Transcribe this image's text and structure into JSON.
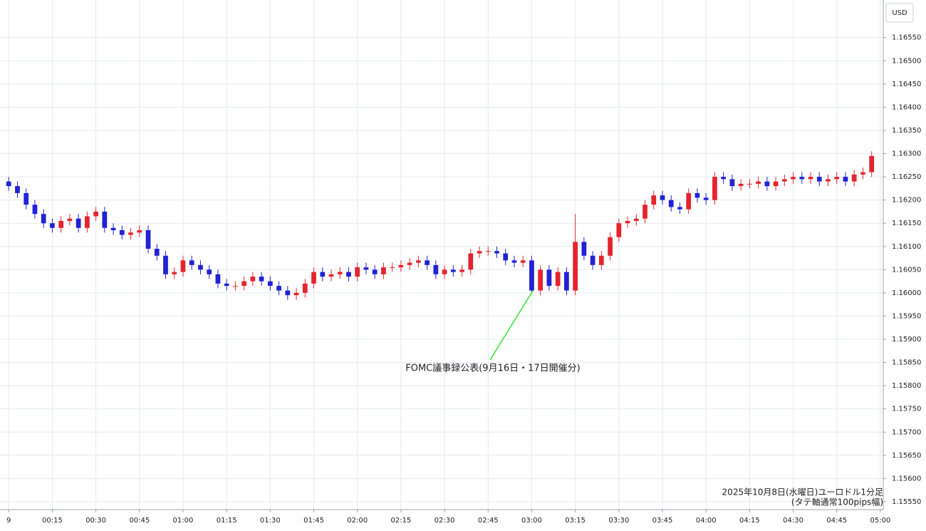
{
  "chart_data": {
    "type": "candlestick",
    "currency": "USD",
    "annotation": "FOMC議事録公表(9月16日・17日開催分)",
    "caption": [
      "2025年10月8日(水曜日)ユーロドル1分足",
      "(タテ軸通常100pips幅)"
    ],
    "up_color": "#e4242e",
    "down_color": "#2121d6",
    "grid": true,
    "xlim": [
      -3,
      301
    ],
    "ylim": [
      1.15533,
      1.16631
    ],
    "xticks": [
      {
        "value": 0,
        "label": "9"
      },
      {
        "value": 15,
        "label": "00:15"
      },
      {
        "value": 30,
        "label": "00:30"
      },
      {
        "value": 45,
        "label": "00:45"
      },
      {
        "value": 60,
        "label": "01:00"
      },
      {
        "value": 75,
        "label": "01:15"
      },
      {
        "value": 90,
        "label": "01:30"
      },
      {
        "value": 105,
        "label": "01:45"
      },
      {
        "value": 120,
        "label": "02:00"
      },
      {
        "value": 135,
        "label": "02:15"
      },
      {
        "value": 150,
        "label": "02:30"
      },
      {
        "value": 165,
        "label": "02:45"
      },
      {
        "value": 180,
        "label": "03:00"
      },
      {
        "value": 195,
        "label": "03:15"
      },
      {
        "value": 210,
        "label": "03:30"
      },
      {
        "value": 225,
        "label": "03:45"
      },
      {
        "value": 240,
        "label": "04:00"
      },
      {
        "value": 255,
        "label": "04:15"
      },
      {
        "value": 270,
        "label": "04:30"
      },
      {
        "value": 285,
        "label": "04:45"
      },
      {
        "value": 300,
        "label": "05:00"
      }
    ],
    "yticks": [
      {
        "value": 1.1555,
        "label": "1.15550"
      },
      {
        "value": 1.156,
        "label": "1.15600"
      },
      {
        "value": 1.1565,
        "label": "1.15650"
      },
      {
        "value": 1.157,
        "label": "1.15700"
      },
      {
        "value": 1.1575,
        "label": "1.15750"
      },
      {
        "value": 1.158,
        "label": "1.15800"
      },
      {
        "value": 1.1585,
        "label": "1.15850"
      },
      {
        "value": 1.159,
        "label": "1.15900"
      },
      {
        "value": 1.1595,
        "label": "1.15950"
      },
      {
        "value": 1.16,
        "label": "1.16000"
      },
      {
        "value": 1.1605,
        "label": "1.16050"
      },
      {
        "value": 1.161,
        "label": "1.16100"
      },
      {
        "value": 1.1615,
        "label": "1.16150"
      },
      {
        "value": 1.162,
        "label": "1.16200"
      },
      {
        "value": 1.1625,
        "label": "1.16250"
      },
      {
        "value": 1.163,
        "label": "1.16300"
      },
      {
        "value": 1.1635,
        "label": "1.16350"
      },
      {
        "value": 1.164,
        "label": "1.16400"
      },
      {
        "value": 1.1645,
        "label": "1.16450"
      },
      {
        "value": 1.165,
        "label": "1.16500"
      },
      {
        "value": 1.1655,
        "label": "1.16550"
      }
    ],
    "x": [
      0,
      3,
      6,
      9,
      12,
      15,
      18,
      21,
      24,
      27,
      30,
      33,
      36,
      39,
      42,
      45,
      48,
      51,
      54,
      57,
      60,
      63,
      66,
      69,
      72,
      75,
      78,
      81,
      84,
      87,
      90,
      93,
      96,
      99,
      102,
      105,
      108,
      111,
      114,
      117,
      120,
      123,
      126,
      129,
      132,
      135,
      138,
      141,
      144,
      147,
      150,
      153,
      156,
      159,
      162,
      165,
      168,
      171,
      174,
      177,
      180,
      183,
      186,
      189,
      192,
      195,
      198,
      201,
      204,
      207,
      210,
      213,
      216,
      219,
      222,
      225,
      228,
      231,
      234,
      237,
      240,
      243,
      246,
      249,
      252,
      255,
      258,
      261,
      264,
      267,
      270,
      273,
      276,
      279,
      282,
      285,
      288,
      291,
      294,
      297
    ],
    "candles": [
      [
        1.1624,
        1.1625,
        1.1622,
        1.1623
      ],
      [
        1.1623,
        1.1624,
        1.16205,
        1.16215
      ],
      [
        1.16215,
        1.16225,
        1.1618,
        1.1619
      ],
      [
        1.1619,
        1.162,
        1.1616,
        1.1617
      ],
      [
        1.1617,
        1.1618,
        1.1614,
        1.1615
      ],
      [
        1.1615,
        1.1616,
        1.1613,
        1.1614
      ],
      [
        1.1614,
        1.16165,
        1.1613,
        1.16155
      ],
      [
        1.16155,
        1.1617,
        1.16145,
        1.1616
      ],
      [
        1.1616,
        1.1617,
        1.1613,
        1.1614
      ],
      [
        1.1614,
        1.16175,
        1.1613,
        1.16165
      ],
      [
        1.16165,
        1.16185,
        1.16155,
        1.16175
      ],
      [
        1.16175,
        1.16185,
        1.1613,
        1.1614
      ],
      [
        1.1614,
        1.1615,
        1.16125,
        1.16135
      ],
      [
        1.16135,
        1.16145,
        1.16115,
        1.16125
      ],
      [
        1.16125,
        1.1614,
        1.16115,
        1.1613
      ],
      [
        1.1613,
        1.16145,
        1.1612,
        1.16135
      ],
      [
        1.16135,
        1.16145,
        1.16085,
        1.16095
      ],
      [
        1.16095,
        1.16105,
        1.1607,
        1.1608
      ],
      [
        1.1608,
        1.1609,
        1.1603,
        1.1604
      ],
      [
        1.1604,
        1.16055,
        1.1603,
        1.16045
      ],
      [
        1.16045,
        1.1608,
        1.16035,
        1.1607
      ],
      [
        1.1607,
        1.1608,
        1.1605,
        1.1606
      ],
      [
        1.1606,
        1.1607,
        1.1604,
        1.1605
      ],
      [
        1.1605,
        1.1606,
        1.1603,
        1.1604
      ],
      [
        1.1604,
        1.1605,
        1.1601,
        1.1602
      ],
      [
        1.1602,
        1.1603,
        1.16005,
        1.16015
      ],
      [
        1.16015,
        1.16025,
        1.16005,
        1.16015
      ],
      [
        1.16015,
        1.16035,
        1.16005,
        1.16025
      ],
      [
        1.16025,
        1.16045,
        1.16015,
        1.16035
      ],
      [
        1.16035,
        1.16045,
        1.16015,
        1.16025
      ],
      [
        1.16025,
        1.16035,
        1.16005,
        1.16015
      ],
      [
        1.16015,
        1.16025,
        1.15995,
        1.16005
      ],
      [
        1.16005,
        1.16015,
        1.15985,
        1.15995
      ],
      [
        1.15995,
        1.1601,
        1.15985,
        1.16
      ],
      [
        1.16,
        1.1603,
        1.1599,
        1.1602
      ],
      [
        1.1602,
        1.16055,
        1.1601,
        1.16045
      ],
      [
        1.16045,
        1.16055,
        1.16025,
        1.16035
      ],
      [
        1.16035,
        1.1605,
        1.16025,
        1.1604
      ],
      [
        1.1604,
        1.16055,
        1.1603,
        1.16045
      ],
      [
        1.16045,
        1.16055,
        1.16025,
        1.16035
      ],
      [
        1.16035,
        1.16065,
        1.16025,
        1.16055
      ],
      [
        1.16055,
        1.16065,
        1.1604,
        1.1605
      ],
      [
        1.1605,
        1.1606,
        1.1603,
        1.1604
      ],
      [
        1.1604,
        1.16065,
        1.1603,
        1.16055
      ],
      [
        1.16055,
        1.16065,
        1.16045,
        1.16055
      ],
      [
        1.16055,
        1.1607,
        1.16045,
        1.1606
      ],
      [
        1.1606,
        1.16075,
        1.1605,
        1.16065
      ],
      [
        1.16065,
        1.1608,
        1.16055,
        1.1607
      ],
      [
        1.1607,
        1.1608,
        1.1605,
        1.1606
      ],
      [
        1.1606,
        1.1607,
        1.1603,
        1.1604
      ],
      [
        1.1604,
        1.1606,
        1.1603,
        1.1605
      ],
      [
        1.1605,
        1.1606,
        1.16035,
        1.16045
      ],
      [
        1.16045,
        1.1606,
        1.16035,
        1.1605
      ],
      [
        1.1605,
        1.16095,
        1.1604,
        1.16085
      ],
      [
        1.16085,
        1.161,
        1.16075,
        1.1609
      ],
      [
        1.1609,
        1.161,
        1.1608,
        1.1609
      ],
      [
        1.1609,
        1.161,
        1.16075,
        1.16085
      ],
      [
        1.16085,
        1.16095,
        1.1606,
        1.1607
      ],
      [
        1.1607,
        1.1608,
        1.16055,
        1.16065
      ],
      [
        1.16065,
        1.1608,
        1.16055,
        1.1607
      ],
      [
        1.1607,
        1.1608,
        1.16,
        1.16005
      ],
      [
        1.16005,
        1.1606,
        1.15995,
        1.1605
      ],
      [
        1.1605,
        1.1606,
        1.16005,
        1.16015
      ],
      [
        1.16015,
        1.16055,
        1.16005,
        1.16045
      ],
      [
        1.16045,
        1.16055,
        1.15995,
        1.16005
      ],
      [
        1.16005,
        1.1617,
        1.15995,
        1.1611
      ],
      [
        1.1611,
        1.1612,
        1.1607,
        1.1608
      ],
      [
        1.1608,
        1.1609,
        1.1605,
        1.1606
      ],
      [
        1.1606,
        1.1609,
        1.1605,
        1.1608
      ],
      [
        1.1608,
        1.1613,
        1.1607,
        1.1612
      ],
      [
        1.1612,
        1.1616,
        1.1611,
        1.1615
      ],
      [
        1.1615,
        1.16165,
        1.1614,
        1.16155
      ],
      [
        1.16155,
        1.1617,
        1.16145,
        1.1616
      ],
      [
        1.1616,
        1.162,
        1.1615,
        1.1619
      ],
      [
        1.1619,
        1.1622,
        1.1618,
        1.1621
      ],
      [
        1.1621,
        1.1622,
        1.1619,
        1.162
      ],
      [
        1.162,
        1.1621,
        1.16175,
        1.16185
      ],
      [
        1.16185,
        1.16195,
        1.1617,
        1.1618
      ],
      [
        1.1618,
        1.16225,
        1.1617,
        1.16215
      ],
      [
        1.16215,
        1.16225,
        1.16195,
        1.16205
      ],
      [
        1.16205,
        1.16215,
        1.1619,
        1.162
      ],
      [
        1.162,
        1.1626,
        1.1619,
        1.1625
      ],
      [
        1.1625,
        1.1626,
        1.16235,
        1.16245
      ],
      [
        1.16245,
        1.16255,
        1.1622,
        1.1623
      ],
      [
        1.1623,
        1.16245,
        1.1622,
        1.16235
      ],
      [
        1.16235,
        1.16245,
        1.16225,
        1.16235
      ],
      [
        1.16235,
        1.1625,
        1.16225,
        1.1624
      ],
      [
        1.1624,
        1.1625,
        1.1622,
        1.1623
      ],
      [
        1.1623,
        1.1625,
        1.1622,
        1.1624
      ],
      [
        1.1624,
        1.16255,
        1.1623,
        1.16245
      ],
      [
        1.16245,
        1.1626,
        1.16235,
        1.1625
      ],
      [
        1.1625,
        1.1626,
        1.16235,
        1.16245
      ],
      [
        1.16245,
        1.1626,
        1.16235,
        1.1625
      ],
      [
        1.1625,
        1.1626,
        1.1623,
        1.1624
      ],
      [
        1.1624,
        1.16255,
        1.1623,
        1.16245
      ],
      [
        1.16245,
        1.1626,
        1.16235,
        1.1625
      ],
      [
        1.1625,
        1.1626,
        1.1623,
        1.1624
      ],
      [
        1.1624,
        1.16265,
        1.1623,
        1.16255
      ],
      [
        1.16255,
        1.1627,
        1.16245,
        1.1626
      ],
      [
        1.1626,
        1.16305,
        1.1625,
        1.16295
      ]
    ]
  }
}
